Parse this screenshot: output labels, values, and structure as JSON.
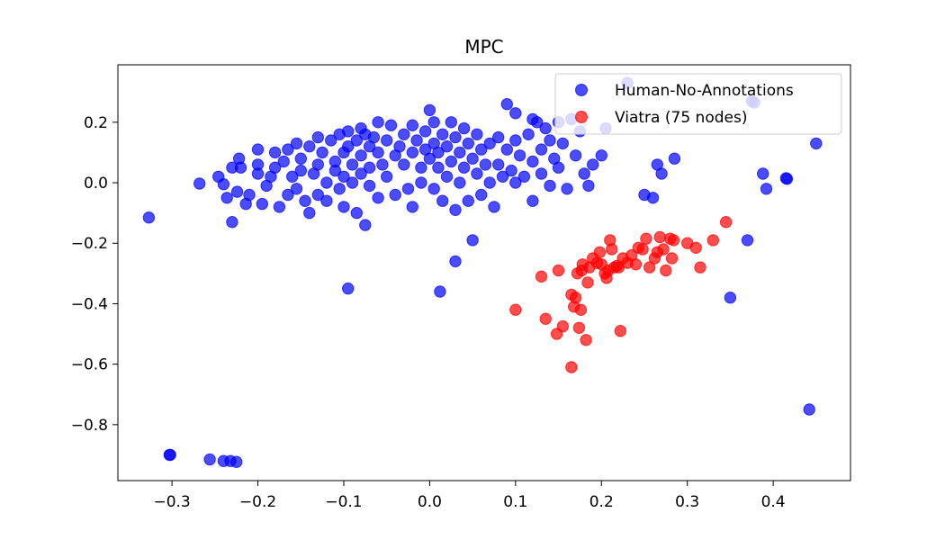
{
  "chart_data": {
    "type": "scatter",
    "title": "MPC",
    "xlabel": "",
    "ylabel": "",
    "xlim": [
      -0.363,
      0.49
    ],
    "ylim": [
      -0.985,
      0.39
    ],
    "xticks": [
      -0.3,
      -0.2,
      -0.1,
      0.0,
      0.1,
      0.2,
      0.3,
      0.4
    ],
    "xtick_labels": [
      "−0.3",
      "−0.2",
      "−0.1",
      "0.0",
      "0.1",
      "0.2",
      "0.3",
      "0.4"
    ],
    "yticks": [
      0.2,
      0.0,
      -0.2,
      -0.4,
      -0.6,
      -0.8
    ],
    "ytick_labels": [
      "0.2",
      "0.0",
      "−0.2",
      "−0.4",
      "−0.6",
      "−0.8"
    ],
    "grid": false,
    "legend_position": "top-right",
    "series": [
      {
        "name": "Human-No-Annotations",
        "color": "#0000ff",
        "alpha": 0.7,
        "points": [
          [
            -0.327,
            -0.115
          ],
          [
            -0.302,
            -0.9
          ],
          [
            -0.303,
            -0.9
          ],
          [
            -0.256,
            -0.915
          ],
          [
            -0.24,
            -0.92
          ],
          [
            -0.232,
            -0.92
          ],
          [
            -0.225,
            -0.923
          ],
          [
            -0.268,
            -0.003
          ],
          [
            -0.246,
            0.02
          ],
          [
            -0.24,
            -0.005
          ],
          [
            -0.236,
            -0.05
          ],
          [
            -0.23,
            0.05
          ],
          [
            -0.23,
            -0.13
          ],
          [
            -0.224,
            -0.03
          ],
          [
            -0.222,
            0.08
          ],
          [
            -0.22,
            0.05
          ],
          [
            -0.214,
            -0.07
          ],
          [
            -0.21,
            -0.04
          ],
          [
            -0.2,
            0.11
          ],
          [
            -0.2,
            0.06
          ],
          [
            -0.2,
            0.03
          ],
          [
            -0.195,
            -0.07
          ],
          [
            -0.19,
            -0.01
          ],
          [
            -0.185,
            0.02
          ],
          [
            -0.18,
            0.1
          ],
          [
            -0.18,
            0.05
          ],
          [
            -0.175,
            -0.08
          ],
          [
            -0.17,
            0.07
          ],
          [
            -0.165,
            0.11
          ],
          [
            -0.165,
            -0.04
          ],
          [
            -0.16,
            0.02
          ],
          [
            -0.155,
            0.13
          ],
          [
            -0.155,
            -0.02
          ],
          [
            -0.15,
            0.08
          ],
          [
            -0.15,
            0.04
          ],
          [
            -0.145,
            -0.06
          ],
          [
            -0.14,
            0.12
          ],
          [
            -0.14,
            -0.1
          ],
          [
            -0.135,
            0.03
          ],
          [
            -0.13,
            0.15
          ],
          [
            -0.13,
            0.06
          ],
          [
            -0.13,
            -0.04
          ],
          [
            -0.125,
            0.1
          ],
          [
            -0.12,
            0.0
          ],
          [
            -0.12,
            -0.06
          ],
          [
            -0.115,
            0.14
          ],
          [
            -0.11,
            0.07
          ],
          [
            -0.11,
            0.04
          ],
          [
            -0.105,
            0.16
          ],
          [
            -0.105,
            -0.02
          ],
          [
            -0.1,
            0.1
          ],
          [
            -0.1,
            0.02
          ],
          [
            -0.1,
            -0.08
          ],
          [
            -0.095,
            0.17
          ],
          [
            -0.095,
            0.12
          ],
          [
            -0.095,
            -0.35
          ],
          [
            -0.09,
            0.06
          ],
          [
            -0.09,
            0.0
          ],
          [
            -0.085,
            0.14
          ],
          [
            -0.085,
            -0.1
          ],
          [
            -0.08,
            0.18
          ],
          [
            -0.08,
            0.09
          ],
          [
            -0.08,
            0.03
          ],
          [
            -0.075,
            0.16
          ],
          [
            -0.075,
            -0.14
          ],
          [
            -0.07,
            0.12
          ],
          [
            -0.07,
            0.05
          ],
          [
            -0.07,
            -0.01
          ],
          [
            -0.065,
            0.15
          ],
          [
            -0.06,
            0.2
          ],
          [
            -0.06,
            0.1
          ],
          [
            -0.06,
            -0.05
          ],
          [
            -0.055,
            0.06
          ],
          [
            -0.05,
            0.14
          ],
          [
            -0.05,
            0.02
          ],
          [
            -0.045,
            0.19
          ],
          [
            -0.04,
            0.09
          ],
          [
            -0.04,
            -0.04
          ],
          [
            -0.035,
            0.12
          ],
          [
            -0.03,
            0.16
          ],
          [
            -0.03,
            0.06
          ],
          [
            -0.025,
            -0.02
          ],
          [
            -0.02,
            0.19
          ],
          [
            -0.02,
            0.1
          ],
          [
            -0.02,
            -0.08
          ],
          [
            -0.015,
            0.14
          ],
          [
            -0.01,
            0.05
          ],
          [
            -0.01,
            0.0
          ],
          [
            -0.005,
            0.17
          ],
          [
            -0.005,
            0.11
          ],
          [
            0.0,
            0.24
          ],
          [
            0.0,
            0.08
          ],
          [
            0.005,
            0.2
          ],
          [
            0.005,
            0.13
          ],
          [
            0.005,
            -0.02
          ],
          [
            0.01,
            0.1
          ],
          [
            0.01,
            0.05
          ],
          [
            0.012,
            -0.36
          ],
          [
            0.015,
            0.16
          ],
          [
            0.015,
            -0.06
          ],
          [
            0.02,
            0.12
          ],
          [
            0.02,
            0.02
          ],
          [
            0.025,
            0.2
          ],
          [
            0.025,
            0.07
          ],
          [
            0.03,
            0.15
          ],
          [
            0.03,
            -0.26
          ],
          [
            0.03,
            -0.09
          ],
          [
            0.035,
            0.1
          ],
          [
            0.035,
            0.0
          ],
          [
            0.04,
            0.18
          ],
          [
            0.04,
            0.05
          ],
          [
            0.045,
            0.13
          ],
          [
            0.045,
            -0.06
          ],
          [
            0.05,
            0.08
          ],
          [
            0.05,
            -0.19
          ],
          [
            0.055,
            0.16
          ],
          [
            0.055,
            0.03
          ],
          [
            0.06,
            0.11
          ],
          [
            0.06,
            -0.04
          ],
          [
            0.065,
            0.06
          ],
          [
            0.07,
            0.13
          ],
          [
            0.07,
            0.0
          ],
          [
            0.075,
            -0.08
          ],
          [
            0.08,
            0.15
          ],
          [
            0.08,
            0.06
          ],
          [
            0.085,
            0.02
          ],
          [
            0.09,
            0.26
          ],
          [
            0.09,
            0.11
          ],
          [
            0.095,
            0.04
          ],
          [
            0.1,
            0.23
          ],
          [
            0.1,
            0.14
          ],
          [
            0.1,
            0.0
          ],
          [
            0.105,
            0.09
          ],
          [
            0.11,
            0.02
          ],
          [
            0.115,
            0.16
          ],
          [
            0.12,
            0.21
          ],
          [
            0.12,
            0.07
          ],
          [
            0.12,
            -0.06
          ],
          [
            0.125,
            0.2
          ],
          [
            0.13,
            0.11
          ],
          [
            0.13,
            0.03
          ],
          [
            0.135,
            0.18
          ],
          [
            0.14,
            0.14
          ],
          [
            0.14,
            -0.01
          ],
          [
            0.145,
            0.08
          ],
          [
            0.15,
            0.2
          ],
          [
            0.15,
            0.05
          ],
          [
            0.155,
            0.13
          ],
          [
            0.16,
            -0.02
          ],
          [
            0.165,
            0.21
          ],
          [
            0.17,
            0.09
          ],
          [
            0.175,
            0.17
          ],
          [
            0.18,
            0.03
          ],
          [
            0.185,
            -0.01
          ],
          [
            0.19,
            0.06
          ],
          [
            0.2,
            0.09
          ],
          [
            0.205,
            0.18
          ],
          [
            0.23,
            0.33
          ],
          [
            0.25,
            -0.04
          ],
          [
            0.26,
            -0.05
          ],
          [
            0.265,
            0.06
          ],
          [
            0.27,
            0.03
          ],
          [
            0.285,
            0.08
          ],
          [
            0.35,
            -0.38
          ],
          [
            0.37,
            -0.19
          ],
          [
            0.375,
            0.27
          ],
          [
            0.378,
            0.265
          ],
          [
            0.388,
            0.03
          ],
          [
            0.392,
            -0.02
          ],
          [
            0.415,
            0.015
          ],
          [
            0.416,
            0.013
          ],
          [
            0.442,
            -0.75
          ],
          [
            0.45,
            0.13
          ]
        ]
      },
      {
        "name": "Viatra (75 nodes)",
        "color": "#ff0000",
        "alpha": 0.7,
        "points": [
          [
            0.1,
            -0.42
          ],
          [
            0.13,
            -0.31
          ],
          [
            0.135,
            -0.45
          ],
          [
            0.148,
            -0.5
          ],
          [
            0.15,
            -0.29
          ],
          [
            0.155,
            -0.475
          ],
          [
            0.165,
            -0.61
          ],
          [
            0.165,
            -0.37
          ],
          [
            0.168,
            -0.41
          ],
          [
            0.17,
            -0.38
          ],
          [
            0.172,
            -0.3
          ],
          [
            0.174,
            -0.48
          ],
          [
            0.176,
            -0.42
          ],
          [
            0.177,
            -0.29
          ],
          [
            0.178,
            -0.27
          ],
          [
            0.182,
            -0.52
          ],
          [
            0.184,
            -0.33
          ],
          [
            0.186,
            -0.28
          ],
          [
            0.19,
            -0.25
          ],
          [
            0.195,
            -0.265
          ],
          [
            0.198,
            -0.23
          ],
          [
            0.2,
            -0.27
          ],
          [
            0.204,
            -0.3
          ],
          [
            0.206,
            -0.315
          ],
          [
            0.208,
            -0.29
          ],
          [
            0.21,
            -0.19
          ],
          [
            0.212,
            -0.22
          ],
          [
            0.215,
            -0.28
          ],
          [
            0.218,
            -0.275
          ],
          [
            0.22,
            -0.28
          ],
          [
            0.222,
            -0.49
          ],
          [
            0.225,
            -0.25
          ],
          [
            0.23,
            -0.265
          ],
          [
            0.235,
            -0.24
          ],
          [
            0.24,
            -0.27
          ],
          [
            0.243,
            -0.215
          ],
          [
            0.248,
            -0.22
          ],
          [
            0.252,
            -0.185
          ],
          [
            0.256,
            -0.28
          ],
          [
            0.262,
            -0.25
          ],
          [
            0.265,
            -0.23
          ],
          [
            0.268,
            -0.18
          ],
          [
            0.272,
            -0.22
          ],
          [
            0.275,
            -0.29
          ],
          [
            0.28,
            -0.185
          ],
          [
            0.282,
            -0.25
          ],
          [
            0.284,
            -0.19
          ],
          [
            0.3,
            -0.2
          ],
          [
            0.31,
            -0.215
          ],
          [
            0.315,
            -0.28
          ],
          [
            0.33,
            -0.19
          ],
          [
            0.345,
            -0.13
          ]
        ]
      }
    ]
  }
}
